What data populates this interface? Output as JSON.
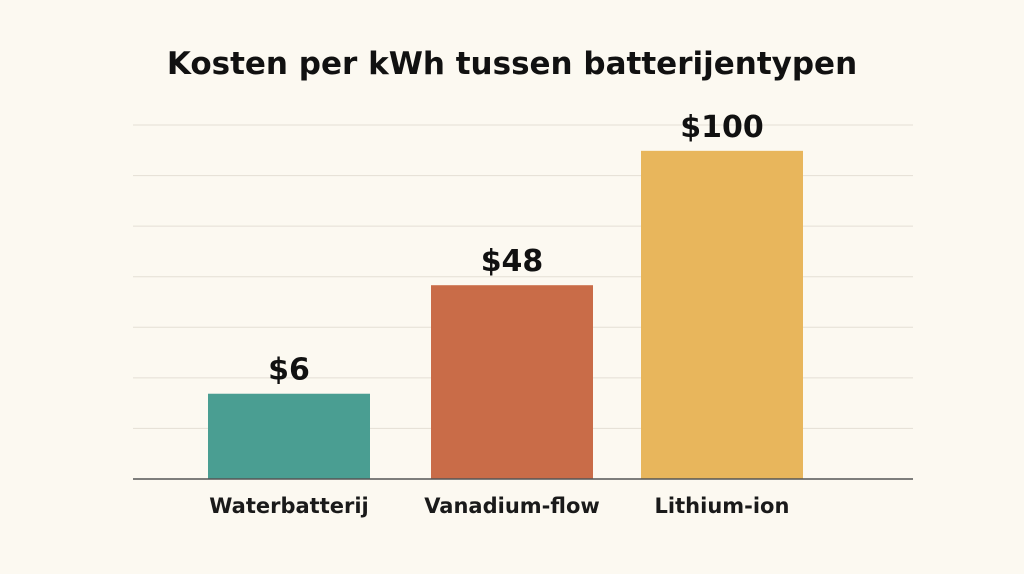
{
  "chart_data": {
    "type": "bar",
    "title": "Kosten per kWh tussen batterijentypen",
    "xlabel": "",
    "ylabel": "",
    "categories": [
      "Waterbatterij",
      "Vanadium-flow",
      "Lithium-ion"
    ],
    "values": [
      6,
      48,
      100
    ],
    "value_labels": [
      "$6",
      "$48",
      "$100"
    ],
    "colors": [
      "#4a9e92",
      "#c96c48",
      "#e8b65c"
    ],
    "ylim": [
      -27,
      110
    ],
    "grid": true,
    "legend": "none"
  }
}
